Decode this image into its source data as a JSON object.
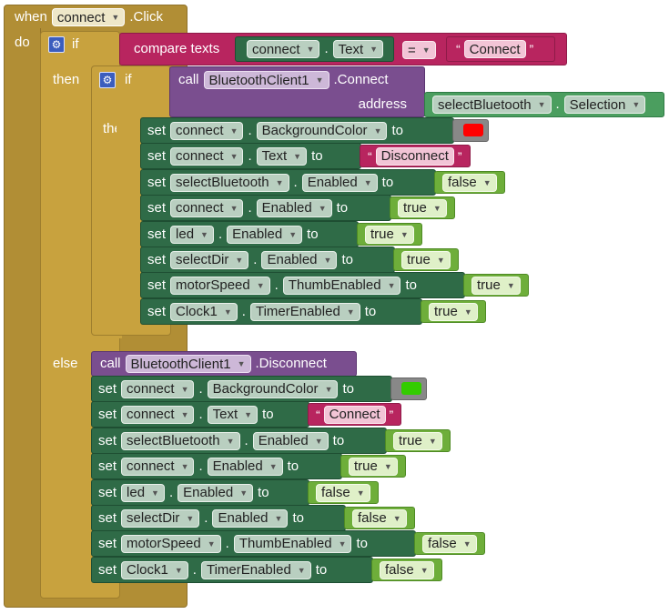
{
  "event": {
    "when": "when",
    "component": "connect",
    "event": ".Click",
    "do": "do"
  },
  "labels": {
    "if": "if",
    "then": "then",
    "else": "else",
    "call": "call",
    "set": "set",
    "to": "to",
    "address": "address"
  },
  "condition": {
    "method": "compare texts",
    "component": "connect",
    "dot": ".",
    "property": "Text",
    "operator": "=",
    "quote_open": "“",
    "quote_close": "”",
    "value": "Connect"
  },
  "inner_if": {
    "component": "BluetoothClient1",
    "method": ".Connect",
    "address_component": "selectBluetooth",
    "address_dot": ".",
    "address_property": "Selection"
  },
  "then_sets": [
    {
      "component": "connect",
      "dot": ".",
      "property": "BackgroundColor",
      "kind": "color",
      "color": "#ff0000"
    },
    {
      "component": "connect",
      "dot": ".",
      "property": "Text",
      "kind": "text",
      "value": "Disconnect",
      "quote_open": "“",
      "quote_close": "”"
    },
    {
      "component": "selectBluetooth",
      "dot": ".",
      "property": "Enabled",
      "kind": "bool",
      "value": "false"
    },
    {
      "component": "connect",
      "dot": ".",
      "property": "Enabled",
      "kind": "bool",
      "value": "true"
    },
    {
      "component": "led",
      "dot": ".",
      "property": "Enabled",
      "kind": "bool",
      "value": "true"
    },
    {
      "component": "selectDir",
      "dot": ".",
      "property": "Enabled",
      "kind": "bool",
      "value": "true"
    },
    {
      "component": "motorSpeed",
      "dot": ".",
      "property": "ThumbEnabled",
      "kind": "bool",
      "value": "true"
    },
    {
      "component": "Clock1",
      "dot": ".",
      "property": "TimerEnabled",
      "kind": "bool",
      "value": "true"
    }
  ],
  "else_call": {
    "component": "BluetoothClient1",
    "method": ".Disconnect"
  },
  "else_sets": [
    {
      "component": "connect",
      "dot": ".",
      "property": "BackgroundColor",
      "kind": "color",
      "color": "#33cc00"
    },
    {
      "component": "connect",
      "dot": ".",
      "property": "Text",
      "kind": "text",
      "value": "Connect",
      "quote_open": "“",
      "quote_close": "”"
    },
    {
      "component": "selectBluetooth",
      "dot": ".",
      "property": "Enabled",
      "kind": "bool",
      "value": "true"
    },
    {
      "component": "connect",
      "dot": ".",
      "property": "Enabled",
      "kind": "bool",
      "value": "true"
    },
    {
      "component": "led",
      "dot": ".",
      "property": "Enabled",
      "kind": "bool",
      "value": "false"
    },
    {
      "component": "selectDir",
      "dot": ".",
      "property": "Enabled",
      "kind": "bool",
      "value": "false"
    },
    {
      "component": "motorSpeed",
      "dot": ".",
      "property": "ThumbEnabled",
      "kind": "bool",
      "value": "false"
    },
    {
      "component": "Clock1",
      "dot": ".",
      "property": "TimerEnabled",
      "kind": "bool",
      "value": "false"
    }
  ],
  "colors": {
    "event": "#b18e35",
    "control": "#c8a23e",
    "component": "#2f6b47",
    "method": "#7a4e8f",
    "text": "#b8255f",
    "logic": "#6eae3a"
  },
  "icons": {
    "mutator": "gear-icon",
    "dropdown": "dropdown-arrow-icon"
  }
}
